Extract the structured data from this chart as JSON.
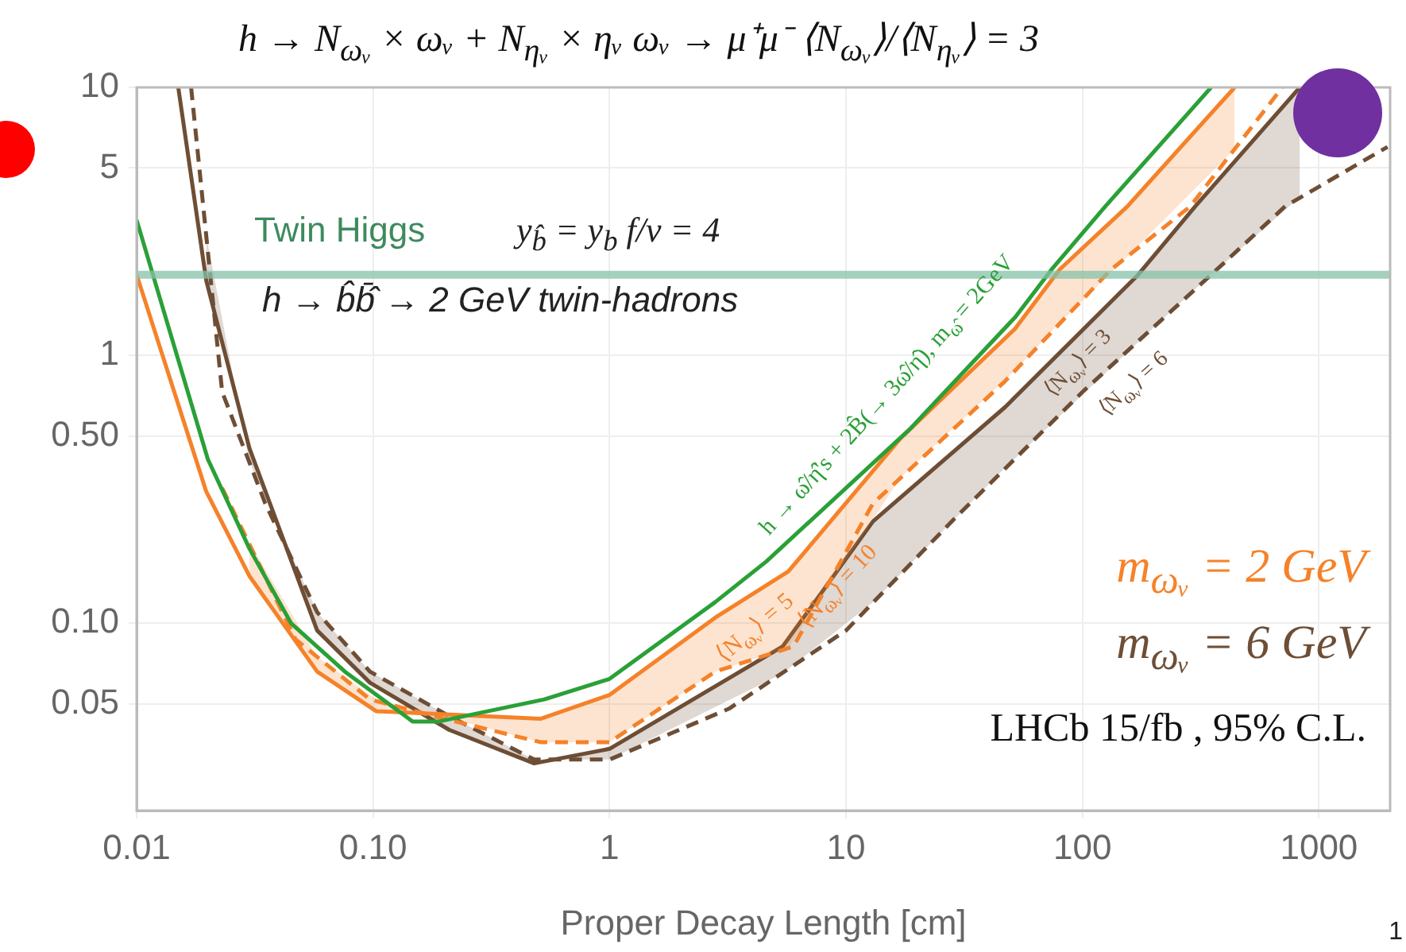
{
  "chart_data": {
    "type": "line",
    "title": "h → N$_{ωᵥ}$ × ωᵥ + N$_{ηᵥ}$ × ηᵥ   ωᵥ → μ⁺μ⁻   ⟨N$_{ωᵥ}$⟩/⟨N$_{ηᵥ}$⟩ = 3",
    "xlabel": "Proper Decay Length [cm]",
    "series": [
      {
        "name": "h → ω̂/η̂'s + 2B̂(→ 3ω̂/η̂), m$_{ω̂}$ = 2GeV",
        "color": "#2aa037",
        "line_style": "solid",
        "x": [
          0.01,
          0.02,
          0.03,
          0.045,
          0.076,
          0.147,
          0.19,
          0.53,
          1,
          2.8,
          4.6,
          18.6,
          52,
          74,
          125,
          350
        ],
        "values": [
          3.2,
          0.41,
          0.19,
          0.1,
          0.066,
          0.043,
          0.043,
          0.052,
          0.062,
          0.12,
          0.17,
          0.53,
          1.39,
          2.09,
          3.6,
          10
        ]
      },
      {
        "name": "⟨N$_{ωᵥ}$⟩ = 5",
        "color": "#f5822a",
        "line_style": "solid",
        "x": [
          0.01,
          0.0197,
          0.03,
          0.058,
          0.103,
          0.51,
          1,
          2.8,
          5.7,
          17,
          52,
          80,
          155,
          440
        ],
        "values": [
          2,
          0.31,
          0.15,
          0.066,
          0.047,
          0.044,
          0.054,
          0.105,
          0.156,
          0.49,
          1.26,
          2.09,
          3.6,
          10
        ],
        "lower": [
          null,
          null,
          0.2,
          0.075,
          0.052,
          0.036,
          0.036,
          0.066,
          0.081,
          0.35,
          0.88,
          1.32,
          2.34,
          5.9
        ],
        "upper": [
          null,
          null,
          0.15,
          0.066,
          0.047,
          0.044,
          0.054,
          0.105,
          0.156,
          0.49,
          1.26,
          2.09,
          3.6,
          10
        ]
      },
      {
        "name": "⟨N$_{ωᵥ}$⟩ = 10",
        "color": "#f5822a",
        "line_style": "dashed",
        "x": [
          0.023,
          0.047,
          0.097,
          0.2,
          0.51,
          1,
          2.8,
          6,
          13,
          47,
          132,
          286,
          700
        ],
        "values": [
          0.32,
          0.087,
          0.052,
          0.044,
          0.036,
          0.036,
          0.066,
          0.082,
          0.28,
          0.8,
          2.09,
          3.6,
          10
        ]
      },
      {
        "name": "⟨N$_{ωᵥ}$⟩ = 3",
        "color": "#6e4e35",
        "line_style": "solid",
        "x": [
          0.015,
          0.0197,
          0.03,
          0.058,
          0.097,
          0.21,
          0.48,
          1,
          5.4,
          13,
          47,
          172,
          300,
          830
        ],
        "values": [
          10,
          1.9,
          0.45,
          0.094,
          0.06,
          0.04,
          0.03,
          0.034,
          0.082,
          0.24,
          0.64,
          2,
          3.6,
          10
        ],
        "lower": [
          null,
          2.8,
          0.4,
          0.11,
          0.066,
          0.045,
          0.031,
          0.031,
          0.065,
          0.12,
          0.38,
          1.12,
          1.77,
          3.9
        ],
        "upper": [
          null,
          1.9,
          0.45,
          0.094,
          0.06,
          0.04,
          0.03,
          0.034,
          0.082,
          0.24,
          0.64,
          2,
          3.6,
          10
        ]
      },
      {
        "name": "⟨N$_{ωᵥ}$⟩ = 6",
        "color": "#6e4e35",
        "line_style": "dashed",
        "x": [
          0.017,
          0.023,
          0.035,
          0.058,
          0.097,
          0.21,
          0.48,
          1,
          3.2,
          10,
          28,
          100,
          370,
          720,
          1950
        ],
        "values": [
          10,
          0.73,
          0.28,
          0.11,
          0.066,
          0.045,
          0.031,
          0.031,
          0.048,
          0.094,
          0.24,
          0.73,
          2.09,
          3.6,
          6
        ]
      }
    ],
    "log": "xy",
    "xlim": [
      0.01,
      2000
    ],
    "xticks": [
      0.01,
      {
        "value": 0.1,
        "label": "0.10"
      },
      1,
      10,
      100,
      1000
    ],
    "ylim": [
      0.02,
      10
    ],
    "yticks": [
      0.05,
      {
        "value": 0.1,
        "label": "0.10"
      },
      {
        "value": 0.5,
        "label": "0.50"
      },
      1,
      5,
      10
    ],
    "grid": true,
    "marker": "none",
    "ref_lines": [
      {
        "axis": "y",
        "value": 2,
        "label": "Twin Higgs",
        "color": "#86c1a8"
      }
    ],
    "annotations": [
      "y$_{b̂}$ = y$_{b}$   f/v = 4",
      "h → b̂b̄̂ → 2 GeV twin-hadrons",
      "m$_{ωᵥ}$ = 2 GeV",
      "m$_{ωᵥ}$ = 6 GeV",
      "LHCb 15/fb , 95% C.L.",
      "1"
    ]
  }
}
